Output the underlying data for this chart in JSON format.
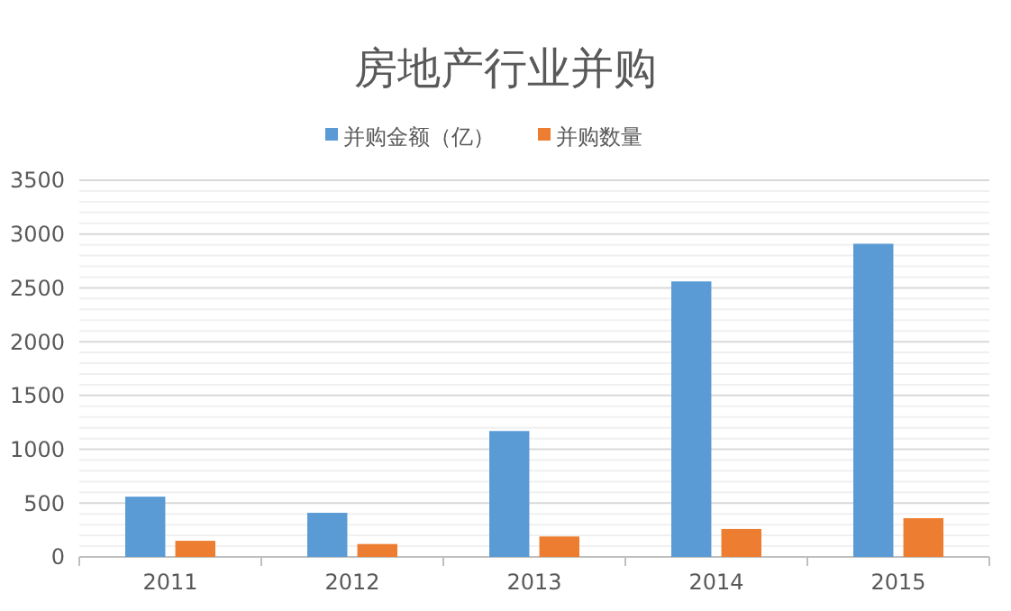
{
  "chart_data": {
    "type": "bar",
    "title": "房地产行业并购",
    "categories": [
      "2011",
      "2012",
      "2013",
      "2014",
      "2015"
    ],
    "series": [
      {
        "name": "并购金额（亿）",
        "color": "#5b9bd5",
        "values": [
          560,
          410,
          1170,
          2560,
          2910
        ]
      },
      {
        "name": "并购数量",
        "color": "#ed7d31",
        "values": [
          150,
          120,
          190,
          260,
          360
        ]
      }
    ],
    "ylim": [
      0,
      3500
    ],
    "yticks": [
      0,
      {
        "value": 100,
        "label": null
      },
      {
        "value": 200,
        "label": null
      },
      {
        "value": 300,
        "label": null
      },
      {
        "value": 400,
        "label": null
      },
      500,
      {
        "value": 600,
        "label": null
      },
      {
        "value": 700,
        "label": null
      },
      {
        "value": 800,
        "label": null
      },
      {
        "value": 900,
        "label": null
      },
      1000,
      {
        "value": 1100,
        "label": null
      },
      {
        "value": 1200,
        "label": null
      },
      {
        "value": 1300,
        "label": null
      },
      {
        "value": 1400,
        "label": null
      },
      1500,
      {
        "value": 1600,
        "label": null
      },
      {
        "value": 1700,
        "label": null
      },
      {
        "value": 1800,
        "label": null
      },
      {
        "value": 1900,
        "label": null
      },
      2000,
      {
        "value": 2100,
        "label": null
      },
      {
        "value": 2200,
        "label": null
      },
      {
        "value": 2300,
        "label": null
      },
      {
        "value": 2400,
        "label": null
      },
      2500,
      {
        "value": 2600,
        "label": null
      },
      {
        "value": 2700,
        "label": null
      },
      {
        "value": 2800,
        "label": null
      },
      {
        "value": 2900,
        "label": null
      },
      3000,
      {
        "value": 3100,
        "label": null
      },
      {
        "value": 3200,
        "label": null
      },
      {
        "value": 3300,
        "label": null
      },
      {
        "value": 3400,
        "label": null
      },
      3500
    ],
    "grid": "y",
    "legend": "top"
  }
}
